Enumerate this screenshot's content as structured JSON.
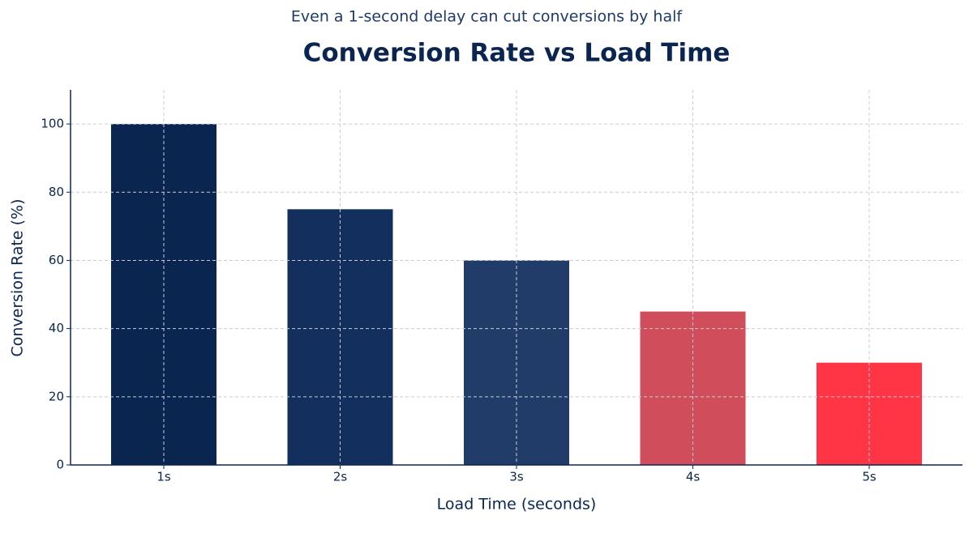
{
  "chart_data": {
    "type": "bar",
    "subtitle": "Even a 1-second delay can cut conversions by half",
    "title": "Conversion Rate vs Load Time",
    "x_label": "Load Time (seconds)",
    "y_label": "Conversion Rate (%)",
    "categories": [
      "1s",
      "2s",
      "3s",
      "4s",
      "5s"
    ],
    "values": [
      100,
      75,
      60,
      45,
      30
    ],
    "colors": [
      "#0a2550",
      "#132f5e",
      "#223c6a",
      "#d04e5c",
      "#ff3545"
    ],
    "ylim": [
      0,
      110
    ],
    "yticks": [
      0,
      20,
      40,
      60,
      80,
      100
    ],
    "grid": true
  }
}
